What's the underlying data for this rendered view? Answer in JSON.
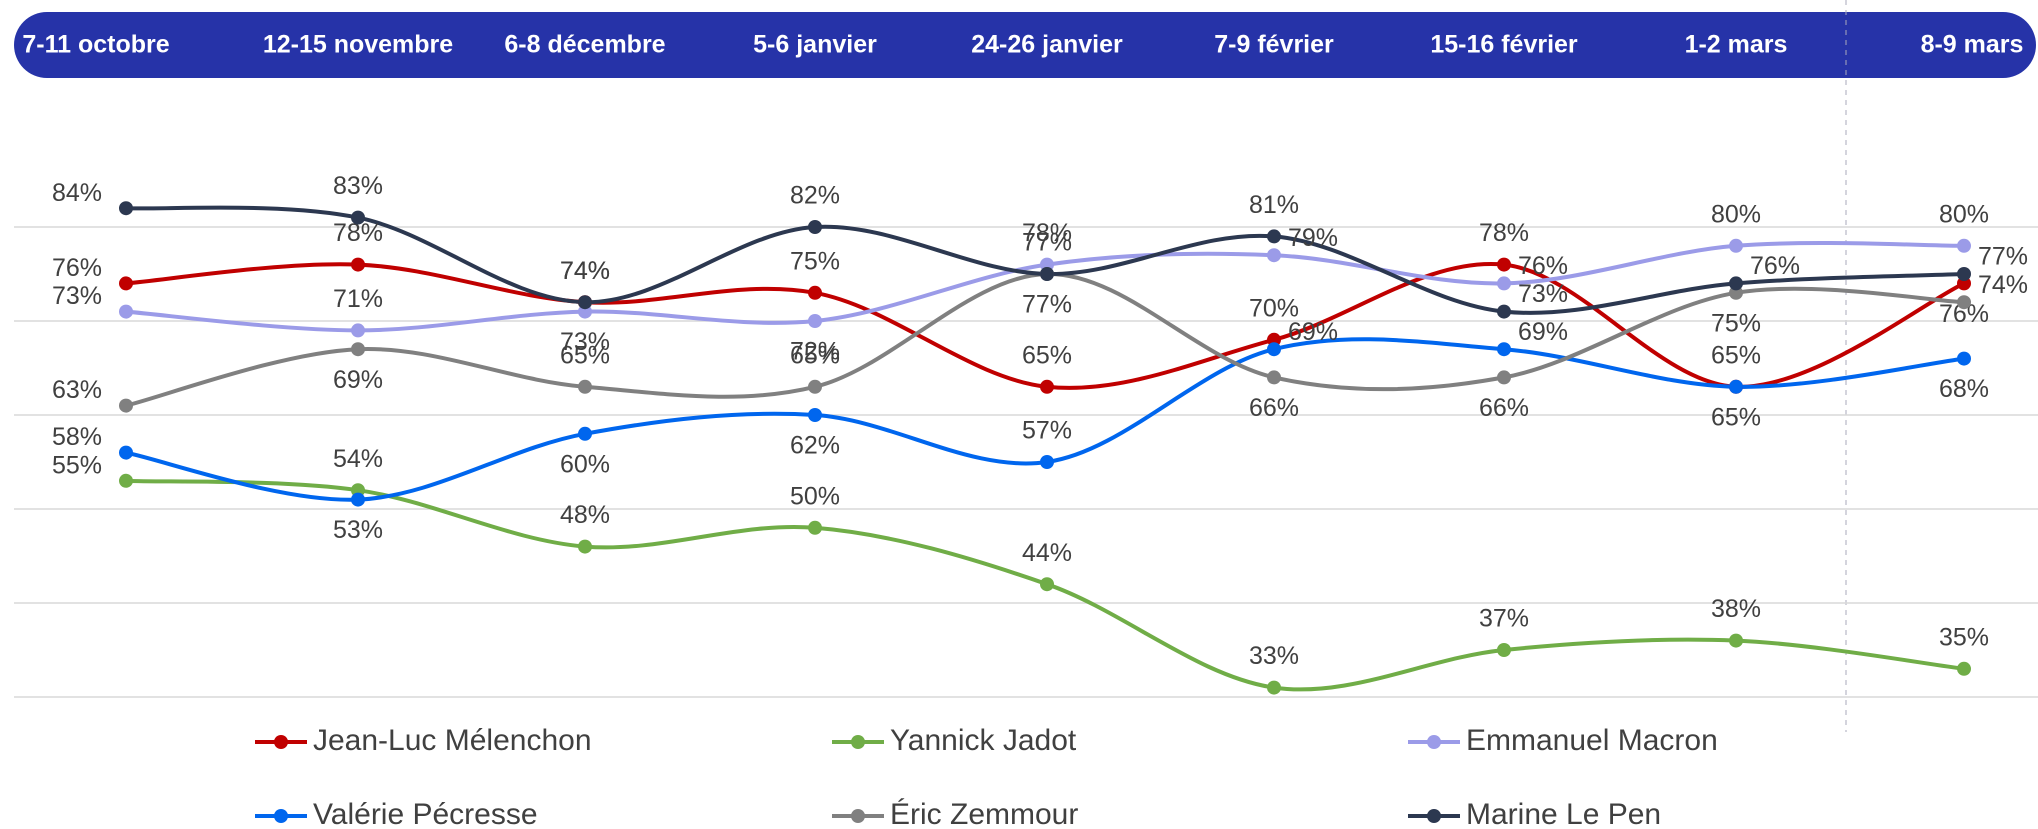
{
  "chart_data": {
    "type": "line",
    "categories": [
      "7-11 octobre",
      "12-15 novembre",
      "6-8 décembre",
      "5-6 janvier",
      "24-26 janvier",
      "7-9 février",
      "15-16 février",
      "1-2 mars",
      "8-9 mars"
    ],
    "ylim": [
      32,
      92
    ],
    "yticks": [
      32,
      42,
      52,
      62,
      72,
      82
    ],
    "grid": true,
    "series": [
      {
        "name": "Jean-Luc Mélenchon",
        "color": "#c00000",
        "values": [
          76,
          78,
          74,
          75,
          65,
          70,
          78,
          65,
          76
        ],
        "value_labels": [
          "76%",
          "78%",
          "74%",
          "75%",
          "65%",
          "70%",
          "78%",
          "65%",
          "76%"
        ]
      },
      {
        "name": "Yannick Jadot",
        "color": "#70ad47",
        "values": [
          55,
          54,
          48,
          50,
          44,
          33,
          37,
          38,
          35
        ],
        "value_labels": [
          "55%",
          "54%",
          "48%",
          "50%",
          "44%",
          "33%",
          "37%",
          "38%",
          "35%"
        ]
      },
      {
        "name": "Emmanuel Macron",
        "color": "#9b9be8",
        "values": [
          73,
          71,
          73,
          72,
          78,
          79,
          76,
          80,
          80
        ],
        "value_labels": [
          "73%",
          "71%",
          "73%",
          "72%",
          "78%",
          "79%",
          "76%",
          "80%",
          "80%"
        ]
      },
      {
        "name": "Valérie Pécresse",
        "color": "#0066ee",
        "values": [
          58,
          53,
          60,
          62,
          57,
          69,
          69,
          65,
          68
        ],
        "value_labels": [
          "58%",
          "53%",
          "60%",
          "62%",
          "57%",
          "69%",
          "69%",
          "65%",
          "68%"
        ]
      },
      {
        "name": "Éric Zemmour",
        "color": "#808080",
        "values": [
          63,
          69,
          65,
          65,
          77,
          66,
          66,
          75,
          74
        ],
        "value_labels": [
          "63%",
          "69%",
          "65%",
          "65%",
          "77%",
          "66%",
          "66%",
          "75%",
          "74%"
        ]
      },
      {
        "name": "Marine Le Pen",
        "color": "#2c3850",
        "values": [
          84,
          83,
          74,
          82,
          77,
          81,
          73,
          76,
          77
        ],
        "value_labels": [
          "84%",
          "83%",
          "74%",
          "82%",
          "77%",
          "81%",
          "73%",
          "76%",
          "77%"
        ]
      }
    ]
  }
}
